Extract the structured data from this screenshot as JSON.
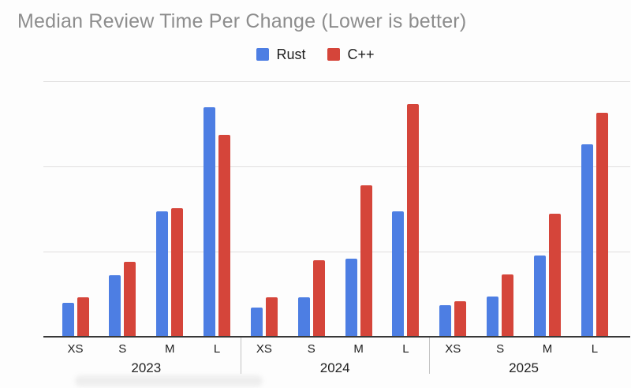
{
  "chart_data": {
    "type": "bar",
    "title": "Median Review Time Per Change (Lower is better)",
    "categories": [
      "XS",
      "S",
      "M",
      "L"
    ],
    "x_groups": [
      "2023",
      "2024",
      "2025"
    ],
    "series": [
      {
        "name": "Rust",
        "color": "#4d7ee3",
        "values": [
          [
            0.4,
            0.72,
            1.47,
            2.69
          ],
          [
            0.34,
            0.46,
            0.92,
            1.47
          ],
          [
            0.37,
            0.47,
            0.95,
            2.26
          ]
        ]
      },
      {
        "name": "C++",
        "color": "#d5453a",
        "values": [
          [
            0.46,
            0.88,
            1.51,
            2.37
          ],
          [
            0.46,
            0.9,
            1.78,
            2.73
          ],
          [
            0.42,
            0.73,
            1.44,
            2.63
          ]
        ]
      }
    ],
    "ylim": [
      0,
      3
    ],
    "y_gridlines": [
      1,
      2,
      3
    ],
    "y_tick_labels": [],
    "legend_position": "top",
    "grid": "horizontal-only",
    "note": "y-axis shows no tick labels; values estimated in gridline units"
  },
  "colors": {
    "title_text": "#8d8d8d",
    "axis_line": "#383838",
    "gridline": "#e0dede",
    "label_text": "#212121",
    "separator_tick": "#c3c3c3"
  }
}
